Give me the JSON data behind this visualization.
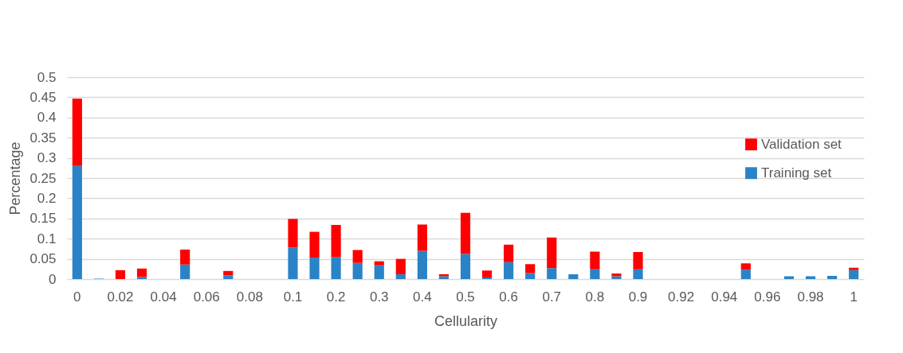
{
  "chart_data": {
    "type": "bar",
    "stacked": true,
    "xlabel": "Cellularity",
    "ylabel": "Percentage",
    "categories": [
      "0",
      null,
      "0.02",
      null,
      "0.04",
      null,
      "0.06",
      null,
      "0.08",
      null,
      "0.1",
      null,
      "0.2",
      null,
      "0.3",
      null,
      "0.4",
      null,
      "0.5",
      null,
      "0.6",
      null,
      "0.7",
      null,
      "0.8",
      null,
      "0.9",
      null,
      "0.92",
      null,
      "0.94",
      null,
      "0.96",
      null,
      "0.98",
      null,
      "1"
    ],
    "series": [
      {
        "name": "Training set",
        "color": "#2a83c6",
        "values": [
          0.28,
          0.001,
          0,
          0.005,
          0,
          0.036,
          0,
          0.009,
          0,
          0,
          0.078,
          0.053,
          0.054,
          0.04,
          0.034,
          0.012,
          0.07,
          0.007,
          0.062,
          0.004,
          0.042,
          0.015,
          0.027,
          0.012,
          0.024,
          0.007,
          0.024,
          0,
          0,
          0,
          0,
          0.023,
          0,
          0.007,
          0.007,
          0.008,
          0.022
        ]
      },
      {
        "name": "Validation set",
        "color": "#ff0000",
        "values": [
          0.167,
          0,
          0.022,
          0.021,
          0,
          0.037,
          0,
          0.011,
          0,
          0,
          0.071,
          0.064,
          0.08,
          0.032,
          0.01,
          0.038,
          0.065,
          0.005,
          0.102,
          0.017,
          0.043,
          0.022,
          0.076,
          0,
          0.044,
          0.007,
          0.043,
          0,
          0,
          0,
          0,
          0.016,
          0,
          0,
          0,
          0,
          0.006
        ]
      }
    ],
    "ylim": [
      0,
      0.5
    ],
    "yticks": [
      0,
      0.05,
      0.1,
      0.15,
      0.2,
      0.25,
      0.3,
      0.35,
      0.4,
      0.45,
      0.5
    ],
    "grid": "y",
    "legend": "right"
  }
}
